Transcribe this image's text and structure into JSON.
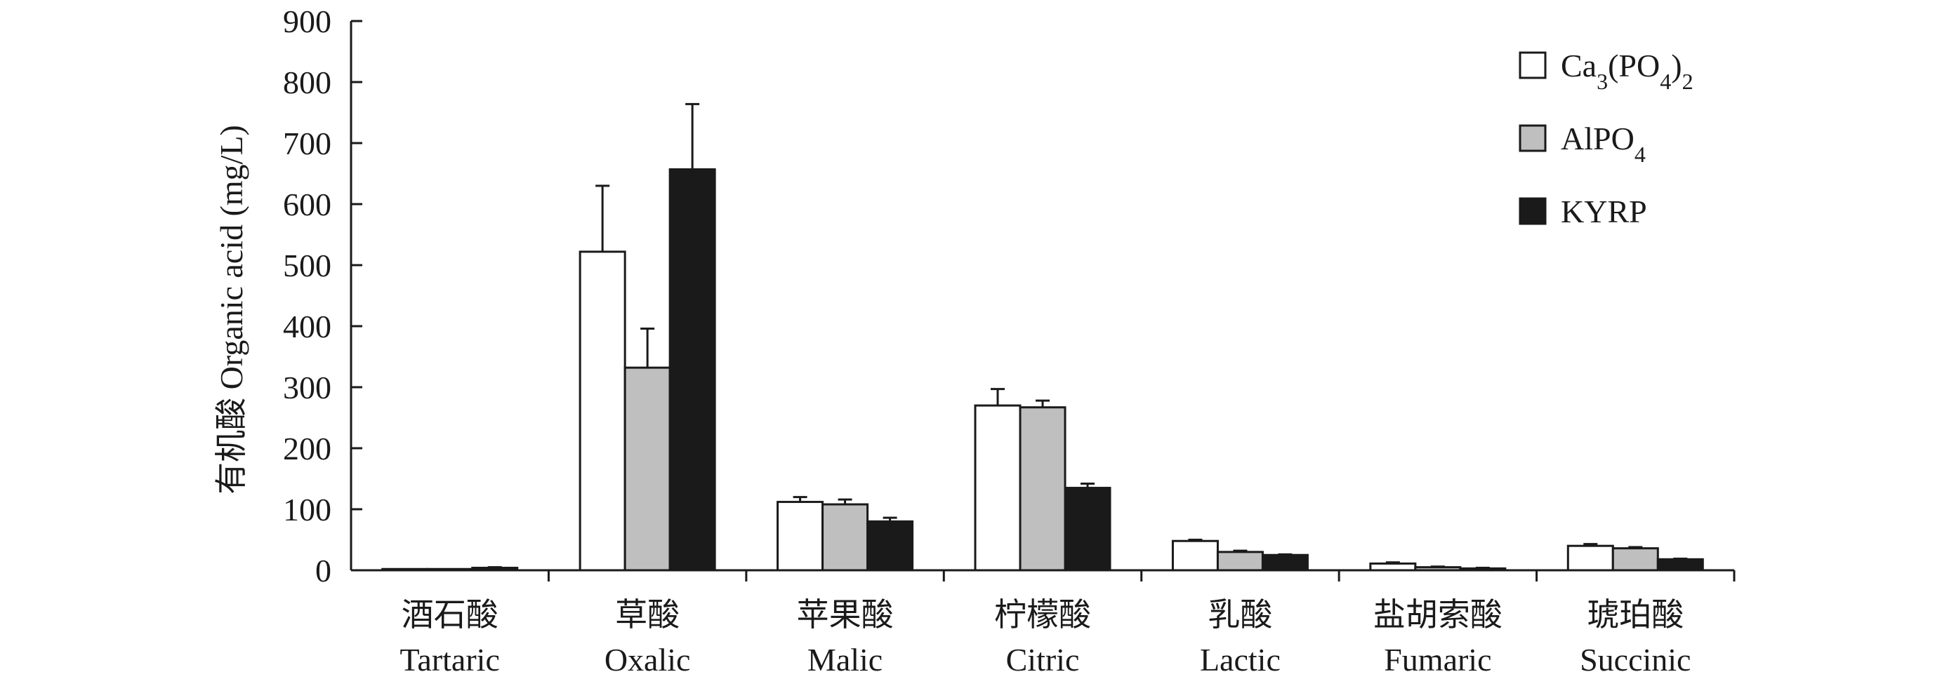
{
  "chart_data": {
    "type": "bar",
    "ylabel": "有机酸 Organic acid (mg/L)",
    "ylim": [
      0,
      900
    ],
    "yticks": [
      0,
      100,
      200,
      300,
      400,
      500,
      600,
      700,
      800,
      900
    ],
    "grid": false,
    "legend_position": "top-right",
    "categories": [
      {
        "zh": "酒石酸",
        "en": "Tartaric"
      },
      {
        "zh": "草酸",
        "en": "Oxalic"
      },
      {
        "zh": "苹果酸",
        "en": "Malic"
      },
      {
        "zh": "柠檬酸",
        "en": "Citric"
      },
      {
        "zh": "乳酸",
        "en": "Lactic"
      },
      {
        "zh": "盐胡索酸",
        "en": "Fumaric"
      },
      {
        "zh": "琥珀酸",
        "en": "Succinic"
      }
    ],
    "series": [
      {
        "name_parts": [
          {
            "t": "Ca",
            "s": ""
          },
          {
            "t": "3",
            "s": "sub"
          },
          {
            "t": "(PO",
            "s": ""
          },
          {
            "t": "4",
            "s": "sub"
          },
          {
            "t": ")",
            "s": ""
          },
          {
            "t": "2",
            "s": "sub"
          }
        ],
        "fill": "#ffffff",
        "values": [
          2,
          522,
          112,
          270,
          48,
          11,
          40
        ],
        "errors": [
          0,
          108,
          8,
          27,
          2,
          2,
          3
        ]
      },
      {
        "name_parts": [
          {
            "t": "AlPO",
            "s": ""
          },
          {
            "t": "4",
            "s": "sub"
          }
        ],
        "fill": "#bfbfbf",
        "values": [
          2,
          332,
          108,
          267,
          30,
          5,
          36
        ],
        "errors": [
          0,
          64,
          8,
          11,
          2,
          1,
          2
        ]
      },
      {
        "name_parts": [
          {
            "t": "KYRP",
            "s": ""
          }
        ],
        "fill": "#1a1a1a",
        "values": [
          4,
          657,
          80,
          135,
          25,
          3,
          18
        ],
        "errors": [
          1,
          107,
          6,
          7,
          1,
          1,
          1
        ]
      }
    ],
    "colors": {
      "axis": "#1a1a1a",
      "bar_stroke": "#1a1a1a"
    }
  }
}
